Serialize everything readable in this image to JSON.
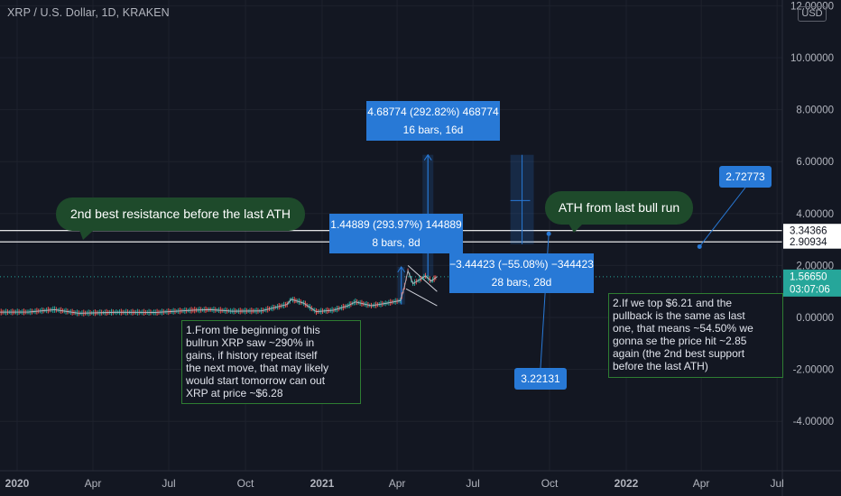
{
  "header": {
    "symbol_title": "XRP / U.S. Dollar, 1D, KRAKEN",
    "currency_badge": "USD"
  },
  "colors": {
    "background": "#131722",
    "price_line": "#e0e3eb",
    "up_candle": "#26a69a",
    "down_candle": "#ef5350",
    "measure_box": "#2879d6",
    "note_border": "#2e7d32",
    "bubble_fill": "#1e4a2b",
    "current_price_tag": "#26a69a"
  },
  "chart_data": {
    "type": "line",
    "title": "XRP / U.S. Dollar, 1D, KRAKEN",
    "ylabel": "USD",
    "ylim": [
      -5.0,
      12.0
    ],
    "y_ticks": [
      "12.00000",
      "10.00000",
      "8.00000",
      "6.00000",
      "4.00000",
      "2.00000",
      "0.00000",
      "-2.00000",
      "-4.00000"
    ],
    "y_tick_values": [
      12,
      10,
      8,
      6,
      4,
      2,
      0,
      -2,
      -4
    ],
    "x_ticks": [
      "2020",
      "Apr",
      "Jul",
      "Oct",
      "2021",
      "Apr",
      "Jul",
      "Oct",
      "2022",
      "Apr",
      "Jul"
    ],
    "x_tick_dates": [
      "2020-01-01",
      "2020-04-01",
      "2020-07-01",
      "2020-10-01",
      "2021-01-01",
      "2021-04-01",
      "2021-07-01",
      "2021-10-01",
      "2022-01-01",
      "2022-04-01",
      "2022-07-01"
    ],
    "grid": true,
    "series": [
      {
        "x": [
          "2019-12-01",
          "2020-01-15",
          "2020-02-15",
          "2020-03-15",
          "2020-05-01",
          "2020-06-15",
          "2020-08-01",
          "2020-08-20",
          "2020-09-15",
          "2020-10-20",
          "2020-11-20",
          "2020-11-25",
          "2020-12-10",
          "2020-12-25",
          "2021-01-15",
          "2021-02-01",
          "2021-02-10",
          "2021-03-01",
          "2021-03-20",
          "2021-04-05",
          "2021-04-10",
          "2021-04-14",
          "2021-04-20",
          "2021-04-28",
          "2021-05-05",
          "2021-05-12",
          "2021-05-19"
        ],
        "values": [
          0.2,
          0.21,
          0.3,
          0.16,
          0.2,
          0.19,
          0.28,
          0.3,
          0.24,
          0.25,
          0.5,
          0.7,
          0.55,
          0.22,
          0.28,
          0.45,
          0.6,
          0.45,
          0.55,
          0.65,
          1.2,
          1.8,
          1.3,
          1.45,
          1.6,
          1.4,
          1.57
        ]
      }
    ],
    "current_price": 1.5665,
    "horizontal_levels": [
      3.34366,
      2.90934
    ],
    "price_tags": [
      {
        "label": "3.34366",
        "value": 3.34366
      },
      {
        "label": "2.90934",
        "value": 2.90934
      },
      {
        "label": "1.56650",
        "value": 1.5665,
        "sub": "03:07:06"
      }
    ],
    "measurements": [
      {
        "line1": "4.68774 (292.82%) 468774",
        "line2": "16 bars, 16d"
      },
      {
        "line1": "1.44889 (293.97%) 144889",
        "line2": "8 bars, 8d"
      },
      {
        "line1": "−3.44423 (−55.08%) −344423",
        "line2": "28 bars, 28d"
      }
    ],
    "callouts": [
      "2.72773",
      "3.22131"
    ]
  },
  "annotations": {
    "bubble_resistance": "2nd best resistance before the last ATH",
    "bubble_ath": "ATH from last bull run",
    "note_1": "1.From the beginning of this\nbullrun XRP saw ~290% in\ngains, if history repeat itself\nthe next move, that may likely\nwould start tomorrow can out\nXRP at price ~$6.28",
    "note_2": "2.If we top $6.21 and the\npullback is the same as last\none, that means ~54.50% we\ngonna se the price hit ~2.85\nagain (the 2nd best support\nbefore the last ATH)"
  }
}
